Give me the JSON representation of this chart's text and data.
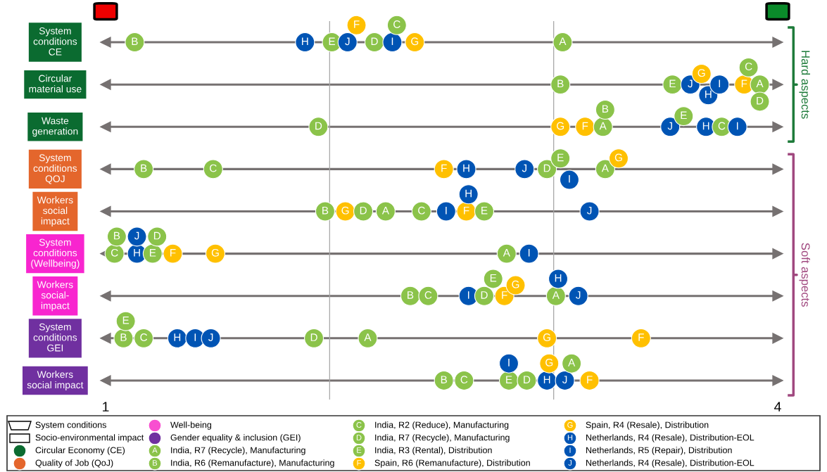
{
  "chart_data": {
    "type": "scatter",
    "orientation": "horizontal",
    "marker": "circle",
    "legend": "bottom",
    "categories": [
      "System\nconditions\nCE",
      "Circular\nmaterial use",
      "Waste\ngeneration",
      "System\nconditions\nQOJ",
      "Workers\nsocial\nimpact",
      "System\nconditions\n(Wellbeing)",
      "Workers\nsocial-\nimpact",
      "System\nconditions\nGEI",
      "Workers\nsocial impact"
    ],
    "colors": [
      "#0b6b30",
      "#0b6b30",
      "#0b6b30",
      "#e4662c",
      "#e4662c",
      "#f825cf",
      "#f825cf",
      "#7030a0",
      "#7030a0"
    ],
    "xlim": [
      1,
      4
    ],
    "xticks": [
      1,
      4
    ],
    "grid": "y",
    "ref_lines": [
      {
        "axis": "x",
        "value": 2,
        "color": "#a6a6a6"
      },
      {
        "axis": "x",
        "value": 3,
        "color": "#a6a6a6"
      }
    ],
    "annotations": [
      "Hard aspects",
      "Soft aspects",
      "System conditions",
      "Socio-environmental impact"
    ],
    "series": [
      {
        "name": "Circular Economy (CE)",
        "color": "#0b6b30",
        "values": [
          null,
          null,
          null,
          null,
          null,
          null,
          null,
          null,
          null
        ]
      },
      {
        "name": "Quality of Job (QoJ)",
        "color": "#e4662c",
        "values": [
          null,
          null,
          null,
          null,
          null,
          null,
          null,
          null,
          null
        ]
      },
      {
        "name": "Well-being",
        "color": "#f84fd0",
        "values": [
          null,
          null,
          null,
          null,
          null,
          null,
          null,
          null,
          null
        ]
      },
      {
        "name": "Gender equality & inclusion (GEI)",
        "color": "#7030a0",
        "values": [
          null,
          null,
          null,
          null,
          null,
          null,
          null,
          null,
          null
        ]
      },
      {
        "name": "India, R7 (Recycle), Manufacturing",
        "color": "#8bc34a",
        "values": [
          3.04,
          3.92,
          3.22,
          3.23,
          2.25,
          2.79,
          3.01,
          2.17,
          3.08
        ],
        "value_labels": [
          "A",
          "A",
          "A",
          "A",
          "A",
          "A",
          "A",
          "A",
          "A"
        ]
      },
      {
        "name": "India, R6 (Remanufacture), Manufacturing",
        "color": "#8bc34a",
        "values": [
          1.13,
          3.03,
          3.23,
          1.17,
          1.98,
          1.05,
          2.36,
          1.08,
          2.51
        ],
        "value_labels": [
          "B",
          "B",
          "B",
          "B",
          "B",
          "B",
          "B",
          "B",
          "B"
        ]
      },
      {
        "name": "India, R2 (Reduce), Manufacturing",
        "color": "#8bc34a",
        "values": [
          2.3,
          3.87,
          3.75,
          1.48,
          2.41,
          1.04,
          2.44,
          1.17,
          2.6
        ],
        "value_labels": [
          "C",
          "C",
          "C",
          "C",
          "C",
          "C",
          "C",
          "C",
          "C"
        ]
      },
      {
        "name": "India, R7 (Recycle), Manufacturing",
        "color": "#8bc34a",
        "values": [
          2.2,
          3.92,
          1.95,
          2.97,
          2.15,
          1.23,
          2.69,
          1.93,
          2.88
        ],
        "value_labels": [
          "D",
          "D",
          "D",
          "D",
          "D",
          "D",
          "D",
          "D",
          "D"
        ]
      },
      {
        "name": "India, R3 (Rental), Distribution",
        "color": "#8bc34a",
        "values": [
          2.01,
          3.53,
          3.58,
          3.03,
          2.69,
          1.21,
          2.73,
          1.09,
          2.8
        ],
        "value_labels": [
          "E",
          "E",
          "E",
          "E",
          "E",
          "E",
          "E",
          "E",
          "E"
        ]
      },
      {
        "name": "Spain, R6 (Remanufacture), Distribution",
        "color": "#ffc000",
        "values": [
          2.12,
          3.85,
          3.14,
          2.51,
          2.61,
          1.3,
          2.78,
          3.39,
          3.16
        ],
        "value_labels": [
          "F",
          "F",
          "F",
          "F",
          "F",
          "F",
          "F",
          "F",
          "F"
        ]
      },
      {
        "name": "Spain, R4 (Resale), Distribution",
        "color": "#ffc000",
        "values": [
          2.38,
          3.66,
          3.03,
          3.29,
          2.07,
          1.49,
          2.83,
          2.97,
          2.98
        ],
        "value_labels": [
          "G",
          "G",
          "G",
          "G",
          "G",
          "G",
          "G",
          "G",
          "G"
        ]
      },
      {
        "name": "Netherlands, R4 (Resale), Distribution-EOL",
        "color": "#0054b4",
        "values": [
          1.89,
          3.69,
          3.68,
          2.61,
          2.62,
          1.14,
          3.02,
          1.32,
          2.97
        ],
        "value_labels": [
          "H",
          "H",
          "H",
          "H",
          "H",
          "H",
          "H",
          "H",
          "H"
        ]
      },
      {
        "name": "Netherlands, R5 (Repair), Distribution",
        "color": "#0054b4",
        "values": [
          2.28,
          3.74,
          3.82,
          3.07,
          2.52,
          2.89,
          2.62,
          1.4,
          2.8
        ],
        "value_labels": [
          "I",
          "I",
          "I",
          "I",
          "I",
          "I",
          "I",
          "I",
          "I"
        ]
      },
      {
        "name": "Netherlands, R4 (Resale), Distribution-EOL",
        "color": "#0054b4",
        "values": [
          2.08,
          3.61,
          3.52,
          2.87,
          3.16,
          1.14,
          3.11,
          1.47,
          3.05
        ],
        "value_labels": [
          "J",
          "J",
          "J",
          "J",
          "J",
          "J",
          "J",
          "J",
          "J"
        ]
      }
    ]
  }
}
